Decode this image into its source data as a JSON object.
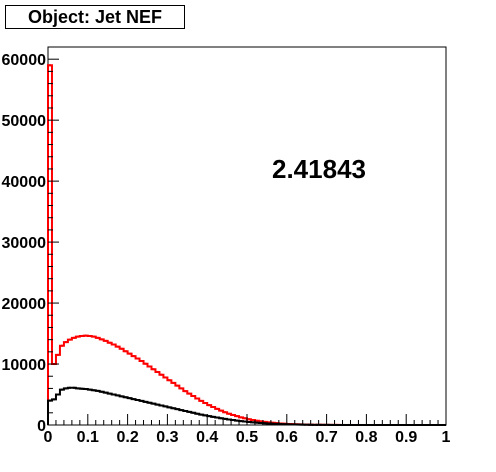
{
  "title": "Object: Jet NEF",
  "annotation": "2.41843",
  "chart_data": {
    "type": "line",
    "title": "Object: Jet NEF",
    "xlabel": "",
    "ylabel": "",
    "xlim": [
      0,
      1
    ],
    "ylim": [
      0,
      62000
    ],
    "grid": false,
    "x_ticks": [
      "0",
      "0.1",
      "0.2",
      "0.3",
      "0.4",
      "0.5",
      "0.6",
      "0.7",
      "0.8",
      "0.9",
      "1"
    ],
    "y_ticks": [
      "0",
      "10000",
      "20000",
      "30000",
      "40000",
      "50000",
      "60000"
    ],
    "x": [
      0.005,
      0.015,
      0.025,
      0.035,
      0.045,
      0.055,
      0.065,
      0.075,
      0.085,
      0.095,
      0.105,
      0.115,
      0.125,
      0.135,
      0.145,
      0.155,
      0.165,
      0.175,
      0.185,
      0.195,
      0.205,
      0.215,
      0.225,
      0.235,
      0.245,
      0.255,
      0.265,
      0.275,
      0.285,
      0.295,
      0.305,
      0.315,
      0.325,
      0.335,
      0.345,
      0.355,
      0.365,
      0.375,
      0.385,
      0.395,
      0.405,
      0.415,
      0.425,
      0.435,
      0.445,
      0.455,
      0.465,
      0.475,
      0.485,
      0.495,
      0.505,
      0.515,
      0.525,
      0.535,
      0.545,
      0.555,
      0.565,
      0.575,
      0.585,
      0.595,
      0.605,
      0.615,
      0.625,
      0.635,
      0.645,
      0.655,
      0.665,
      0.675,
      0.685,
      0.695,
      0.705,
      0.715,
      0.725,
      0.735,
      0.745,
      0.755,
      0.765,
      0.775,
      0.785,
      0.795,
      0.805,
      0.815,
      0.825,
      0.835,
      0.845,
      0.855,
      0.865,
      0.875,
      0.885,
      0.895,
      0.905,
      0.915,
      0.925,
      0.935,
      0.945,
      0.955,
      0.965,
      0.975,
      0.985,
      0.995
    ],
    "series": [
      {
        "color": "#ff0000",
        "values": [
          59000,
          10000,
          11500,
          13000,
          13600,
          14000,
          14300,
          14500,
          14600,
          14650,
          14600,
          14500,
          14300,
          14050,
          13800,
          13500,
          13200,
          12850,
          12500,
          12100,
          11700,
          11300,
          10900,
          10500,
          10050,
          9600,
          9150,
          8700,
          8250,
          7800,
          7350,
          6900,
          6450,
          6000,
          5550,
          5150,
          4750,
          4350,
          3950,
          3600,
          3250,
          2950,
          2650,
          2350,
          2100,
          1850,
          1650,
          1450,
          1250,
          1100,
          950,
          820,
          700,
          600,
          510,
          430,
          360,
          300,
          250,
          210,
          170,
          140,
          115,
          95,
          78,
          62,
          50,
          40,
          32,
          26,
          20,
          16,
          12,
          10,
          8,
          6,
          5,
          4,
          3,
          2,
          2,
          1,
          1,
          1,
          1,
          0,
          0,
          0,
          0,
          0,
          0,
          0,
          0,
          0,
          0,
          0,
          0,
          0,
          0,
          0
        ]
      },
      {
        "color": "#000000",
        "values": [
          4000,
          4200,
          5000,
          5800,
          6000,
          6100,
          6100,
          6000,
          5950,
          5900,
          5800,
          5700,
          5600,
          5450,
          5300,
          5150,
          5000,
          4850,
          4700,
          4550,
          4400,
          4250,
          4100,
          3950,
          3800,
          3650,
          3500,
          3350,
          3200,
          3050,
          2900,
          2750,
          2600,
          2450,
          2300,
          2150,
          2000,
          1850,
          1700,
          1580,
          1460,
          1340,
          1220,
          1110,
          1000,
          900,
          810,
          720,
          640,
          570,
          500,
          440,
          380,
          330,
          285,
          245,
          210,
          180,
          150,
          125,
          105,
          88,
          72,
          60,
          48,
          38,
          30,
          24,
          18,
          14,
          11,
          8,
          6,
          5,
          4,
          3,
          2,
          2,
          1,
          1,
          1,
          0,
          0,
          0,
          0,
          0,
          0,
          0,
          0,
          0,
          0,
          0,
          0,
          0,
          0,
          0,
          0,
          0,
          0,
          0
        ]
      }
    ]
  }
}
